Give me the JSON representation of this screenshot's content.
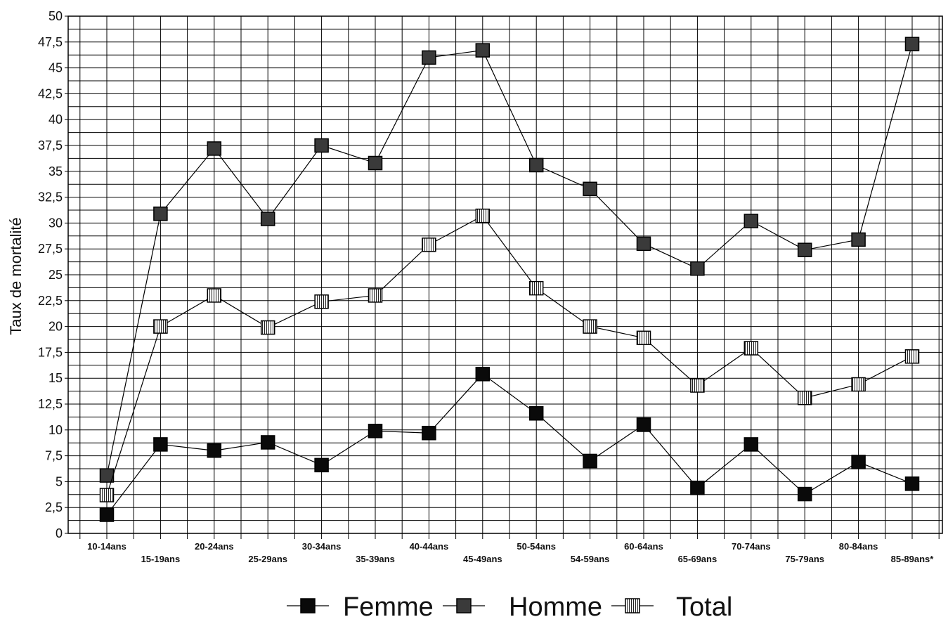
{
  "chart_data": {
    "type": "line",
    "title": "",
    "xlabel": "",
    "ylabel": "Taux de mortalité",
    "ylim": [
      0,
      50
    ],
    "grid": true,
    "legend_position": "bottom",
    "categories": [
      "10-14ans",
      "15-19ans",
      "20-24ans",
      "25-29ans",
      "30-34ans",
      "35-39ans",
      "40-44ans",
      "45-49ans",
      "50-54ans",
      "54-59ans",
      "60-64ans",
      "65-69ans",
      "70-74ans",
      "75-79ans",
      "80-84ans",
      "85-89ans*"
    ],
    "y_ticks": [
      "0",
      "2,5",
      "5",
      "7,5",
      "10",
      "12,5",
      "15",
      "17,5",
      "20",
      "22,5",
      "25",
      "27,5",
      "30",
      "32,5",
      "35",
      "37,5",
      "40",
      "42,5",
      "45",
      "47,5",
      "50"
    ],
    "series": [
      {
        "name": "Femme",
        "marker": "solid",
        "color": "#111111",
        "values": [
          1.8,
          8.6,
          8.0,
          8.8,
          6.6,
          9.9,
          9.7,
          15.4,
          11.6,
          7.0,
          10.5,
          4.4,
          8.6,
          3.8,
          6.9,
          4.8
        ]
      },
      {
        "name": "Homme",
        "marker": "dark-gray",
        "color": "#333333",
        "values": [
          5.6,
          30.9,
          37.2,
          30.4,
          37.5,
          35.8,
          46.0,
          46.7,
          35.6,
          33.3,
          28.0,
          25.6,
          30.2,
          27.4,
          28.4,
          47.3
        ]
      },
      {
        "name": "Total",
        "marker": "hatched",
        "color": "#ffffff",
        "values": [
          3.7,
          20.0,
          23.0,
          19.9,
          22.4,
          23.0,
          27.9,
          30.7,
          23.7,
          20.0,
          18.9,
          14.3,
          17.9,
          13.1,
          14.4,
          17.1
        ]
      }
    ]
  }
}
